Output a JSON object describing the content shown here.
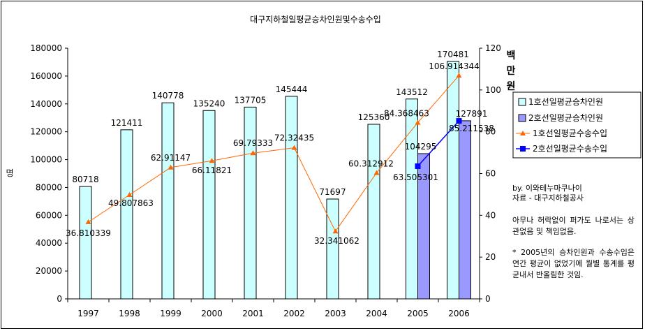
{
  "chart_data": {
    "type": "bar",
    "title": "대구지하철일평균승차인원및수송수입",
    "categories": [
      "1997",
      "1998",
      "1999",
      "2000",
      "2001",
      "2002",
      "2003",
      "2004",
      "2005",
      "2006"
    ],
    "ylabel": "명",
    "y2label": [
      "백",
      "만",
      "원"
    ],
    "ylim": [
      0,
      180000
    ],
    "y2lim": [
      0,
      120
    ],
    "yticks": [
      "0",
      "20000",
      "40000",
      "60000",
      "80000",
      "100000",
      "120000",
      "140000",
      "160000",
      "180000"
    ],
    "y2ticks": [
      "0",
      "20",
      "40",
      "60",
      "80",
      "100",
      "120"
    ],
    "legend_position": "right",
    "series": [
      {
        "name": "1호선일평균승차인원",
        "type": "bar",
        "axis": "left",
        "color": "#ccffff",
        "values": [
          80718,
          121411,
          140778,
          135240,
          137705,
          145444,
          71697,
          125360,
          143512,
          170481
        ],
        "labels": [
          "80718",
          "121411",
          "140778",
          "135240",
          "137705",
          "145444",
          "71697",
          "125360",
          "143512",
          "170481"
        ]
      },
      {
        "name": "2호선일평균승차인원",
        "type": "bar",
        "axis": "left",
        "color": "#9999ff",
        "values": [
          null,
          null,
          null,
          null,
          null,
          null,
          null,
          null,
          104295,
          127891
        ],
        "labels": [
          "",
          "",
          "",
          "",
          "",
          "",
          "",
          "",
          "104295",
          "127891"
        ]
      },
      {
        "name": "1호선일평균수송수입",
        "type": "line",
        "axis": "right",
        "color": "#ff6600",
        "values": [
          36.810339,
          49.807863,
          62.91147,
          66.11821,
          69.79333,
          72.32435,
          32.341062,
          60.312912,
          84.368463,
          106.914344
        ],
        "labels": [
          "36.810339",
          "49.807863",
          "62.91147",
          "66.11821",
          "69.79333",
          "72.32435",
          "32.341062",
          "60.312912",
          "84.368463",
          "106.914344"
        ]
      },
      {
        "name": "2호선일평균수송수입",
        "type": "line",
        "axis": "right",
        "color": "#0000ff",
        "values": [
          null,
          null,
          null,
          null,
          null,
          null,
          null,
          null,
          63.505301,
          85.211538
        ],
        "labels": [
          "",
          "",
          "",
          "",
          "",
          "",
          "",
          "",
          "63.505301",
          "85.211538"
        ]
      }
    ]
  },
  "notes": {
    "author": "by. 이와테누마쿠나이",
    "source": "자료 - 대구지하철공사",
    "disclaimer": "아무나 허락없이 퍼가도 나로서는 상관없음 및 책임없음.",
    "footnote": "* 2005년의 승차인원과 수송수입은 연간 평균이 없었기에 월별 통계를 평균내서 반올림한 것임."
  }
}
